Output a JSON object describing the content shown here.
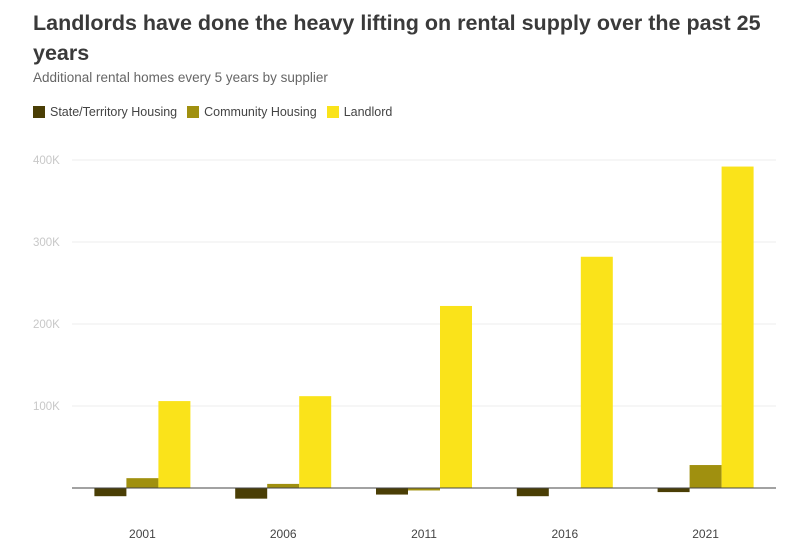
{
  "chart_data": {
    "type": "bar",
    "title": "Landlords have done the heavy lifting on rental supply over the past 25 years",
    "subtitle": "Additional rental homes every 5 years by supplier",
    "categories": [
      "2001",
      "2006",
      "2011",
      "2016",
      "2021"
    ],
    "series": [
      {
        "name": "State/Territory Housing",
        "color": "#4a3e05",
        "values": [
          -10000,
          -13000,
          -8000,
          -10000,
          -5000
        ]
      },
      {
        "name": "Community Housing",
        "color": "#a0900f",
        "values": [
          12000,
          5000,
          -3000,
          0,
          28000
        ]
      },
      {
        "name": "Landlord",
        "color": "#fae31a",
        "values": [
          106000,
          112000,
          222000,
          282000,
          392000
        ]
      }
    ],
    "yticks": [
      {
        "value": 100000,
        "label": "100K"
      },
      {
        "value": 200000,
        "label": "200K"
      },
      {
        "value": 300000,
        "label": "300K"
      },
      {
        "value": 400000,
        "label": "400K"
      }
    ],
    "ylim": [
      -20000,
      400000
    ],
    "grid": true,
    "legend_position": "top-left"
  }
}
